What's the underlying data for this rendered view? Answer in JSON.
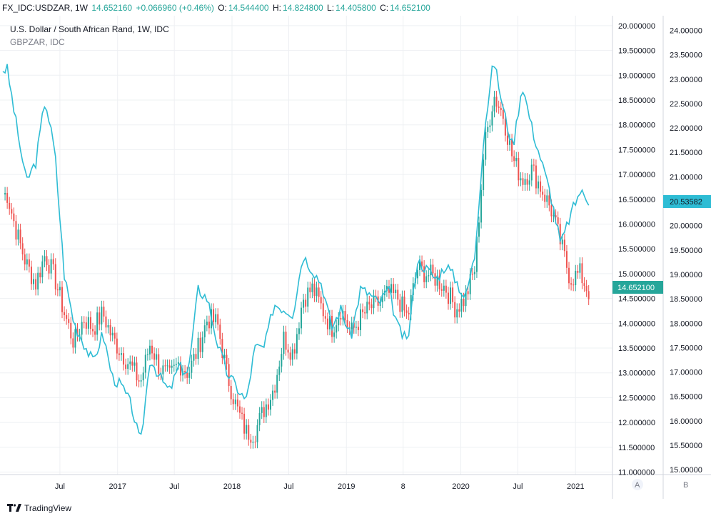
{
  "header": {
    "symbol": "FX_IDC:USDZAR, 1W",
    "last": "14.652160",
    "change": "+0.066960 (+0.46%)",
    "o_label": "O:",
    "o_value": "14.544400",
    "h_label": "H:",
    "h_value": "14.824800",
    "l_label": "L:",
    "l_value": "14.405800",
    "c_label": "C:",
    "c_value": "14.652100"
  },
  "legend": {
    "main": "U.S. Dollar / South African Rand, 1W, IDC",
    "compare": "GBPZAR, IDC"
  },
  "scale_buttons": {
    "a": "A",
    "b": "B"
  },
  "footer": {
    "brand": "TradingView"
  },
  "colors": {
    "up": "#26a69a",
    "down": "#ef5350",
    "compare": "#2ebcd4",
    "grid": "#eef0f3"
  },
  "chart_data": {
    "type": "line",
    "x_tick_labels": [
      "Jul",
      "2017",
      "Jul",
      "2018",
      "Jul",
      "2019",
      "8",
      "2020",
      "Jul",
      "2021"
    ],
    "y_left_ticks": [
      "20.000000",
      "19.500000",
      "19.000000",
      "18.500000",
      "18.000000",
      "17.500000",
      "17.000000",
      "16.500000",
      "16.000000",
      "15.500000",
      "15.000000",
      "14.500000",
      "14.000000",
      "13.500000",
      "13.000000",
      "12.500000",
      "12.000000",
      "11.500000",
      "11.000000"
    ],
    "y_right_ticks": [
      "24.00000",
      "23.50000",
      "23.00000",
      "22.50000",
      "22.00000",
      "21.50000",
      "21.00000",
      "20.50000",
      "20.00000",
      "19.50000",
      "19.00000",
      "18.50000",
      "18.00000",
      "17.50000",
      "17.00000",
      "16.50000",
      "16.00000",
      "15.50000",
      "15.00000"
    ],
    "ylim_left": [
      10.95,
      20.2
    ],
    "ylim_right": [
      14.9,
      24.3
    ],
    "last_left": "14.652100",
    "last_right": "20.53582",
    "series": [
      {
        "name": "USDZAR",
        "x": [
          "2016-01",
          "2016-02",
          "2016-03",
          "2016-04",
          "2016-05",
          "2016-06",
          "2016-07",
          "2016-08",
          "2016-09",
          "2016-10",
          "2016-11",
          "2016-12",
          "2017-01",
          "2017-02",
          "2017-03",
          "2017-04",
          "2017-05",
          "2017-06",
          "2017-07",
          "2017-08",
          "2017-09",
          "2017-10",
          "2017-11",
          "2017-12",
          "2018-01",
          "2018-02",
          "2018-03",
          "2018-04",
          "2018-05",
          "2018-06",
          "2018-07",
          "2018-08",
          "2018-09",
          "2018-10",
          "2018-11",
          "2018-12",
          "2019-01",
          "2019-02",
          "2019-03",
          "2019-04",
          "2019-05",
          "2019-06",
          "2019-07",
          "2019-08",
          "2019-09",
          "2019-10",
          "2019-11",
          "2019-12",
          "2020-01",
          "2020-02",
          "2020-03",
          "2020-04",
          "2020-05",
          "2020-06",
          "2020-07",
          "2020-08",
          "2020-09",
          "2020-10",
          "2020-11",
          "2020-12",
          "2021-01",
          "2021-02"
        ],
        "values": [
          16.6,
          15.8,
          15.2,
          14.8,
          15.4,
          14.9,
          14.2,
          13.6,
          14.1,
          13.9,
          14.2,
          13.7,
          13.4,
          13.1,
          12.8,
          13.6,
          13.1,
          12.9,
          13.2,
          13.0,
          13.5,
          14.1,
          14.0,
          13.0,
          12.3,
          11.8,
          11.8,
          12.3,
          12.7,
          13.7,
          13.4,
          14.5,
          14.7,
          14.3,
          13.9,
          14.3,
          13.8,
          14.1,
          14.3,
          14.4,
          14.6,
          14.5,
          14.1,
          15.1,
          15.0,
          14.9,
          14.7,
          14.3,
          14.5,
          15.1,
          17.5,
          18.6,
          18.2,
          17.3,
          16.9,
          17.1,
          16.7,
          16.3,
          15.6,
          14.9,
          15.0,
          14.6
        ]
      },
      {
        "name": "GBPZAR",
        "x": [
          "2016-01",
          "2016-02",
          "2016-03",
          "2016-04",
          "2016-05",
          "2016-06",
          "2016-07",
          "2016-08",
          "2016-09",
          "2016-10",
          "2016-11",
          "2016-12",
          "2017-01",
          "2017-02",
          "2017-03",
          "2017-04",
          "2017-05",
          "2017-06",
          "2017-07",
          "2017-08",
          "2017-09",
          "2017-10",
          "2017-11",
          "2017-12",
          "2018-01",
          "2018-02",
          "2018-03",
          "2018-04",
          "2018-05",
          "2018-06",
          "2018-07",
          "2018-08",
          "2018-09",
          "2018-10",
          "2018-11",
          "2018-12",
          "2019-01",
          "2019-02",
          "2019-03",
          "2019-04",
          "2019-05",
          "2019-06",
          "2019-07",
          "2019-08",
          "2019-09",
          "2019-10",
          "2019-11",
          "2019-12",
          "2020-01",
          "2020-02",
          "2020-03",
          "2020-04",
          "2020-05",
          "2020-06",
          "2020-07",
          "2020-08",
          "2020-09",
          "2020-10",
          "2020-11",
          "2020-12",
          "2021-01",
          "2021-02"
        ],
        "values": [
          23.2,
          22.0,
          20.9,
          21.3,
          22.6,
          21.5,
          19.0,
          18.0,
          17.6,
          17.2,
          17.8,
          16.9,
          16.7,
          16.3,
          15.5,
          17.3,
          16.9,
          16.6,
          17.1,
          17.0,
          18.7,
          18.5,
          17.6,
          17.0,
          16.7,
          16.4,
          17.5,
          17.5,
          18.4,
          18.3,
          18.2,
          19.4,
          19.1,
          18.8,
          17.9,
          18.3,
          17.7,
          18.7,
          18.6,
          18.4,
          18.7,
          17.9,
          17.6,
          19.3,
          19.1,
          18.9,
          19.2,
          18.9,
          18.5,
          19.4,
          21.9,
          23.4,
          22.4,
          21.6,
          22.9,
          22.0,
          21.3,
          20.6,
          19.6,
          20.2,
          20.7,
          20.5
        ]
      }
    ],
    "grid": true,
    "legend_placement": "top-left"
  }
}
